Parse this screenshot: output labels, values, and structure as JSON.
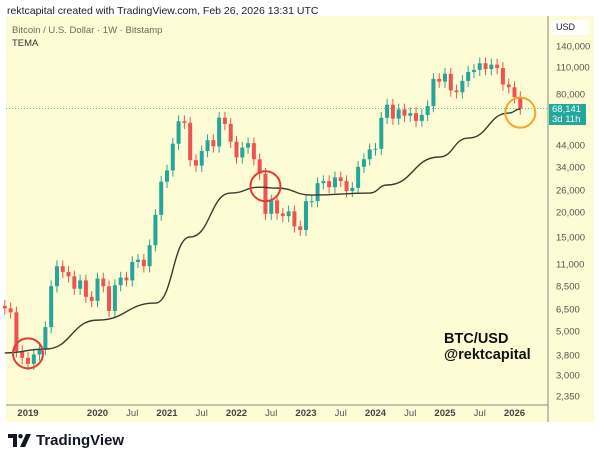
{
  "header": {
    "attribution": "rektcapital created with TradingView.com, Feb 26, 2026 13:31 UTC"
  },
  "legend": {
    "symbol": "Bitcoin / U.S. Dollar · 1W · Bitstamp",
    "indicator": "TEMA"
  },
  "watermark": {
    "line1": "BTC/USD",
    "line2": "@rektcapital"
  },
  "footer": {
    "logo_text": "TradingView"
  },
  "colors": {
    "background": "#fdfcd4",
    "up": "#26a69a",
    "down": "#ef5350",
    "tema": "#3b3a30",
    "circle_red": "#e53935",
    "circle_orange": "#f5a623"
  },
  "chart_data": {
    "type": "candlestick",
    "scale": "log",
    "currency_label": "USD",
    "ylim": [
      2200,
      160000
    ],
    "y_ticks": [
      "140,000",
      "110,000",
      "80,000",
      "44,000",
      "34,000",
      "26,000",
      "20,000",
      "15,000",
      "11,000",
      "8,500",
      "6,500",
      "5,000",
      "3,800",
      "3,000",
      "2,350"
    ],
    "x_ticks": [
      {
        "label": "2019",
        "year": true
      },
      {
        "label": "2020",
        "year": true
      },
      {
        "label": "Jul",
        "year": false
      },
      {
        "label": "2021",
        "year": true
      },
      {
        "label": "Jul",
        "year": false
      },
      {
        "label": "2022",
        "year": true
      },
      {
        "label": "Jul",
        "year": false
      },
      {
        "label": "2023",
        "year": true
      },
      {
        "label": "Jul",
        "year": false
      },
      {
        "label": "2024",
        "year": true
      },
      {
        "label": "Jul",
        "year": false
      },
      {
        "label": "2025",
        "year": true
      },
      {
        "label": "Jul",
        "year": false
      },
      {
        "label": "2026",
        "year": true
      }
    ],
    "last_price": {
      "value": "68,141",
      "countdown": "3d 11h"
    },
    "price_closes_monthly": {
      "start": "2018-09",
      "values": [
        6600,
        6300,
        4000,
        3700,
        3450,
        3850,
        4100,
        5300,
        8550,
        10800,
        10100,
        9600,
        8300,
        9150,
        7550,
        7200,
        9350,
        8550,
        6400,
        8650,
        9450,
        9150,
        11350,
        11650,
        10800,
        13800,
        19700,
        29000,
        33100,
        45200,
        58800,
        57700,
        37300,
        35000,
        41500,
        47100,
        43800,
        61300,
        57000,
        46300,
        38500,
        43200,
        45500,
        37700,
        31800,
        19900,
        23300,
        20000,
        19400,
        20500,
        17200,
        16500,
        23100,
        23100,
        28500,
        29200,
        27200,
        30500,
        29200,
        26000,
        27000,
        34500,
        37700,
        42300,
        42600,
        61200,
        71300,
        60600,
        67500,
        62700,
        64600,
        59000,
        63300,
        70200,
        96400,
        93400,
        102400,
        84300,
        82500,
        94200,
        104600,
        107100,
        115700,
        108200,
        114000,
        109500,
        90400,
        87500,
        78000,
        68141
      ]
    },
    "tema": [
      [
        "2018-09",
        3920
      ],
      [
        "2019-04",
        4100
      ],
      [
        "2020-01",
        5750
      ],
      [
        "2020-11",
        7020
      ],
      [
        "2021-05",
        15200
      ],
      [
        "2021-12",
        25400
      ],
      [
        "2022-05",
        27200
      ],
      [
        "2022-08",
        26900
      ],
      [
        "2023-02",
        24800
      ],
      [
        "2023-12",
        25400
      ],
      [
        "2024-03",
        27900
      ],
      [
        "2024-12",
        38700
      ],
      [
        "2025-05",
        48300
      ],
      [
        "2025-12",
        64700
      ],
      [
        "2026-02",
        67800
      ]
    ],
    "annotations": [
      {
        "shape": "circle",
        "color": "red",
        "date": "2019-01",
        "value": 3900
      },
      {
        "shape": "circle",
        "color": "red",
        "date": "2022-06",
        "value": 27500
      },
      {
        "shape": "circle",
        "color": "orange",
        "date": "2026-02",
        "value": 65000
      }
    ]
  }
}
